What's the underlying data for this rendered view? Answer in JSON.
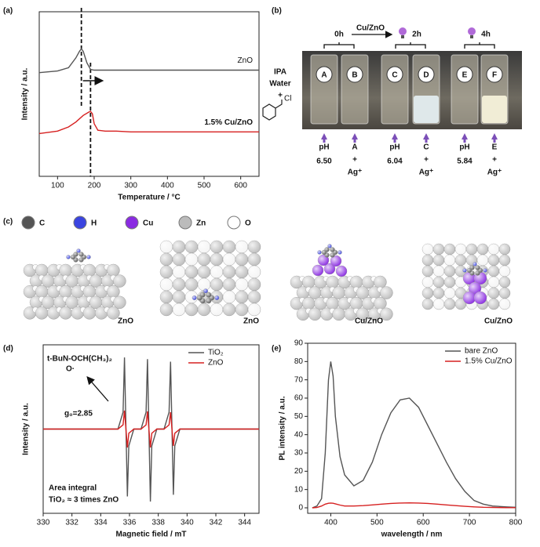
{
  "panel_labels": [
    "(a)",
    "(b)",
    "(c)",
    "(d)",
    "(e)"
  ],
  "chart_data": [
    {
      "type": "line",
      "xlabel": "Temperature / °C",
      "ylabel": "Intensity / a.u.",
      "xlim": [
        50,
        650
      ],
      "xticks": [
        100,
        200,
        300,
        400,
        500,
        600
      ],
      "ylim": [
        0,
        10
      ],
      "legend": "inline",
      "guides": [
        165,
        190
      ],
      "series": [
        {
          "name": "ZnO",
          "color": "#555555",
          "x": [
            50,
            100,
            130,
            150,
            160,
            165,
            170,
            180,
            190,
            200,
            220,
            250,
            300,
            400,
            500,
            600,
            650
          ],
          "values": [
            6.3,
            6.4,
            6.6,
            7.2,
            7.6,
            7.75,
            7.6,
            6.9,
            6.5,
            6.45,
            6.45,
            6.45,
            6.45,
            6.45,
            6.45,
            6.45,
            6.45
          ]
        },
        {
          "name": "1.5% Cu/ZnO",
          "color": "#d62020",
          "x": [
            50,
            100,
            130,
            150,
            170,
            185,
            190,
            195,
            200,
            210,
            230,
            260,
            300,
            400,
            500,
            600,
            650
          ],
          "values": [
            2.6,
            2.75,
            3.0,
            3.3,
            3.7,
            3.9,
            3.95,
            3.8,
            3.2,
            2.8,
            2.75,
            2.75,
            2.7,
            2.7,
            2.7,
            2.7,
            2.7
          ]
        }
      ]
    },
    {
      "type": "line",
      "xlabel": "Magnetic field / mT",
      "ylabel": "Intensity / a.u.",
      "xlim": [
        330,
        345
      ],
      "xticks": [
        330,
        332,
        334,
        336,
        338,
        340,
        342,
        344
      ],
      "ylim": [
        -10,
        10
      ],
      "legend": "upper right",
      "annotations": [
        "t-BuN-OCH(CH₃)₂",
        "O·",
        "g₀=2.85",
        "Area integral",
        "TiO₂ ≈ 3 times ZnO"
      ],
      "series": [
        {
          "name": "TiO₂",
          "color": "#555555",
          "x": [
            330,
            335.2,
            335.55,
            335.65,
            335.85,
            335.95,
            336.3,
            336.8,
            337.15,
            337.25,
            337.45,
            337.55,
            337.9,
            338.4,
            338.75,
            338.85,
            339.05,
            339.15,
            339.5,
            345
          ],
          "values": [
            0,
            0,
            2,
            8.5,
            -8,
            -2,
            0,
            0,
            2,
            8.3,
            -8.6,
            -2,
            0,
            0,
            2,
            8,
            -7.8,
            -2,
            0,
            0
          ]
        },
        {
          "name": "ZnO",
          "color": "#d62020",
          "x": [
            330,
            335.2,
            335.55,
            335.65,
            335.85,
            335.95,
            336.3,
            336.8,
            337.15,
            337.25,
            337.45,
            337.55,
            337.9,
            338.4,
            338.75,
            338.85,
            339.05,
            339.15,
            339.5,
            345
          ],
          "values": [
            0,
            0,
            0.5,
            2.2,
            -2.2,
            -0.5,
            0,
            0,
            0.5,
            2.1,
            -2.2,
            -0.5,
            0,
            0,
            0.5,
            2.0,
            -2.0,
            -0.5,
            0,
            0
          ]
        }
      ]
    },
    {
      "type": "line",
      "xlabel": "wavelength / nm",
      "ylabel": "PL intensity / a.u.",
      "xlim": [
        350,
        800
      ],
      "xticks": [
        400,
        500,
        600,
        700,
        800
      ],
      "ylim": [
        -3,
        90
      ],
      "yticks": [
        0,
        10,
        20,
        30,
        40,
        50,
        60,
        70,
        80,
        90
      ],
      "legend": "upper right",
      "series": [
        {
          "name": "bare ZnO",
          "color": "#555555",
          "x": [
            360,
            370,
            380,
            388,
            395,
            400,
            405,
            410,
            420,
            430,
            450,
            470,
            490,
            510,
            530,
            550,
            570,
            590,
            610,
            630,
            650,
            670,
            690,
            710,
            730,
            750,
            780,
            800
          ],
          "values": [
            0,
            1,
            5,
            30,
            70,
            80,
            72,
            50,
            28,
            18,
            12,
            15,
            25,
            40,
            52,
            59,
            60,
            55,
            45,
            35,
            25,
            16,
            9,
            4,
            2,
            1,
            0.5,
            0.3
          ]
        },
        {
          "name": "1.5% Cu/ZnO",
          "color": "#d62020",
          "x": [
            360,
            370,
            380,
            388,
            395,
            400,
            405,
            410,
            420,
            430,
            450,
            470,
            490,
            510,
            530,
            550,
            570,
            590,
            610,
            630,
            650,
            670,
            690,
            710,
            730,
            750,
            780,
            800
          ],
          "values": [
            0,
            0.2,
            1,
            2,
            2.5,
            2.6,
            2.5,
            2.2,
            1.5,
            1,
            1,
            1.2,
            1.6,
            2,
            2.4,
            2.6,
            2.7,
            2.6,
            2.4,
            2,
            1.6,
            1.2,
            0.8,
            0.5,
            0.3,
            0.2,
            0.1,
            0.1
          ]
        }
      ]
    }
  ],
  "photo": {
    "times": [
      "0h",
      "2h",
      "4h"
    ],
    "catalyst": "Cu/ZnO",
    "vials": [
      "A",
      "B",
      "C",
      "D",
      "E",
      "F"
    ],
    "reagents": [
      "IPA",
      "Water",
      "+"
    ],
    "chloride": "Cl",
    "tests": [
      {
        "label": "pH",
        "value": "6.50"
      },
      {
        "sample": "A",
        "plus": "+",
        "ion": "Ag⁺"
      },
      {
        "label": "pH",
        "value": "6.04"
      },
      {
        "sample": "C",
        "plus": "+",
        "ion": "Ag⁺"
      },
      {
        "label": "pH",
        "value": "5.84"
      },
      {
        "sample": "E",
        "plus": "+",
        "ion": "Ag⁺"
      }
    ]
  },
  "structures": {
    "legend": [
      {
        "name": "C",
        "color": "#555555"
      },
      {
        "name": "H",
        "color": "#3a44e0"
      },
      {
        "name": "Cu",
        "color": "#8a2be2"
      },
      {
        "name": "Zn",
        "color": "#bbbbbb"
      },
      {
        "name": "O",
        "color": "#ffffff"
      }
    ],
    "labels": [
      "ZnO",
      "ZnO",
      "Cu/ZnO",
      "Cu/ZnO"
    ]
  }
}
